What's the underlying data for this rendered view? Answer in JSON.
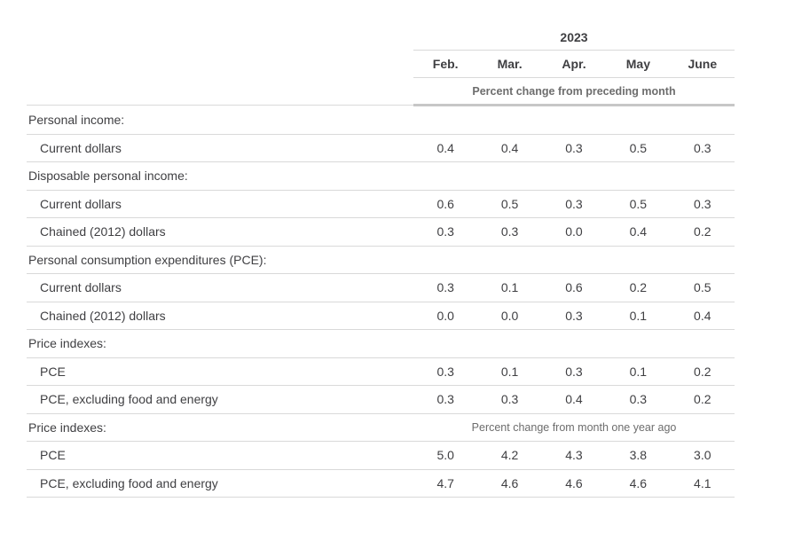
{
  "table": {
    "year": "2023",
    "months": [
      "Feb.",
      "Mar.",
      "Apr.",
      "May",
      "June"
    ],
    "unit_note": "Percent change from preceding month",
    "rows": [
      {
        "type": "section",
        "label": "Personal income:"
      },
      {
        "type": "data",
        "label": "Current dollars",
        "values": [
          "0.4",
          "0.4",
          "0.3",
          "0.5",
          "0.3"
        ]
      },
      {
        "type": "section",
        "label": "Disposable personal income:"
      },
      {
        "type": "data",
        "label": "Current dollars",
        "values": [
          "0.6",
          "0.5",
          "0.3",
          "0.5",
          "0.3"
        ]
      },
      {
        "type": "data",
        "label": "Chained (2012) dollars",
        "values": [
          "0.3",
          "0.3",
          "0.0",
          "0.4",
          "0.2"
        ]
      },
      {
        "type": "section",
        "label": "Personal consumption expenditures (PCE):"
      },
      {
        "type": "data",
        "label": "Current dollars",
        "values": [
          "0.3",
          "0.1",
          "0.6",
          "0.2",
          "0.5"
        ]
      },
      {
        "type": "data",
        "label": "Chained (2012) dollars",
        "values": [
          "0.0",
          "0.0",
          "0.3",
          "0.1",
          "0.4"
        ]
      },
      {
        "type": "section",
        "label": "Price indexes:"
      },
      {
        "type": "data",
        "label": "PCE",
        "values": [
          "0.3",
          "0.1",
          "0.3",
          "0.1",
          "0.2"
        ]
      },
      {
        "type": "data",
        "label": "PCE, excluding food and energy",
        "values": [
          "0.3",
          "0.3",
          "0.4",
          "0.3",
          "0.2"
        ]
      },
      {
        "type": "section",
        "label": "Price indexes:",
        "note": "Percent change from month one year ago"
      },
      {
        "type": "data",
        "label": "PCE",
        "values": [
          "5.0",
          "4.2",
          "4.3",
          "3.8",
          "3.0"
        ]
      },
      {
        "type": "data",
        "label": "PCE, excluding food and energy",
        "values": [
          "4.7",
          "4.6",
          "4.6",
          "4.6",
          "4.1"
        ]
      }
    ],
    "colors": {
      "text": "#3f3f42",
      "muted": "#6d6d6d",
      "border": "#d9d9d9",
      "thick_bar": "#c7c7c7"
    }
  }
}
